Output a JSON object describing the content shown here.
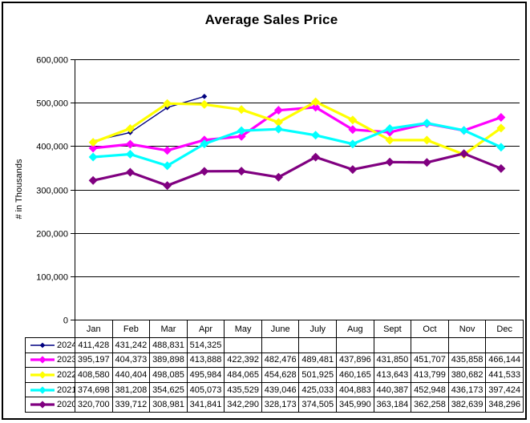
{
  "chart_data": {
    "type": "line",
    "title": "Average Sales Price",
    "ylabel": "# in Thousands",
    "xlabel": "",
    "ylim": [
      0,
      600000
    ],
    "ytick_step": 100000,
    "ytick_labels": [
      "0",
      "100,000",
      "200,000",
      "300,000",
      "400,000",
      "500,000",
      "600,000"
    ],
    "grid": "horizontal-only",
    "legend_position": "table-left-column",
    "categories": [
      "Jan",
      "Feb",
      "Mar",
      "Apr",
      "May",
      "June",
      "July",
      "Aug",
      "Sept",
      "Oct",
      "Nov",
      "Dec"
    ],
    "series": [
      {
        "name": "2024",
        "color": "#000080",
        "line_width": 1.4,
        "marker_size": 3.4,
        "values": [
          411428,
          431242,
          488831,
          514325,
          null,
          null,
          null,
          null,
          null,
          null,
          null,
          null
        ]
      },
      {
        "name": "2023",
        "color": "#FF00FF",
        "line_width": 3.2,
        "marker_size": 5.5,
        "values": [
          395197,
          404373,
          389898,
          413888,
          422392,
          482476,
          489481,
          437896,
          431850,
          451707,
          435858,
          466144
        ]
      },
      {
        "name": "2022",
        "color": "#FFFF00",
        "line_width": 3.2,
        "marker_size": 5.5,
        "values": [
          408580,
          440404,
          498085,
          495984,
          484065,
          454628,
          501925,
          460165,
          413643,
          413799,
          380682,
          441533
        ]
      },
      {
        "name": "2021",
        "color": "#00FFFF",
        "line_width": 3.2,
        "marker_size": 5.5,
        "values": [
          374698,
          381208,
          354625,
          405073,
          435529,
          439046,
          425033,
          404883,
          440387,
          452948,
          436173,
          397424
        ]
      },
      {
        "name": "2020",
        "color": "#800080",
        "line_width": 3.2,
        "marker_size": 5.5,
        "values": [
          320700,
          339712,
          308981,
          341841,
          342290,
          328173,
          374505,
          345990,
          363184,
          362258,
          382639,
          348296
        ]
      }
    ]
  }
}
